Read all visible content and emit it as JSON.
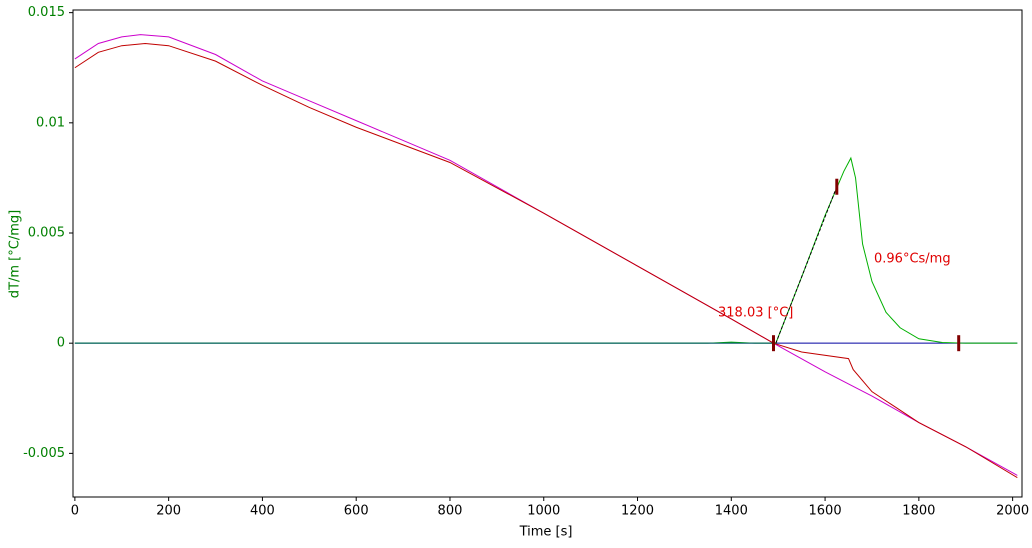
{
  "chart_data": {
    "type": "line",
    "xlabel": "Time [s]",
    "ylabel": "dT/m  [°C/mg]",
    "xlim": [
      -4,
      2020
    ],
    "ylim": [
      -0.00698,
      0.01512
    ],
    "xticks": [
      0,
      200,
      400,
      600,
      800,
      1000,
      1200,
      1400,
      1600,
      1800,
      2000
    ],
    "yticks": [
      -0.005,
      0,
      0.005,
      0.01,
      0.015
    ],
    "series": [
      {
        "color": "#0000a0",
        "x": [
          0,
          2010
        ],
        "values": [
          0,
          0
        ]
      },
      {
        "color": "#cc00cc",
        "x": [
          0,
          50,
          100,
          140,
          200,
          300,
          400,
          500,
          600,
          700,
          800,
          1000,
          1200,
          1400,
          1490,
          1600,
          1700,
          1800,
          1900,
          2010
        ],
        "values": [
          0.0129,
          0.0136,
          0.0139,
          0.014,
          0.0139,
          0.0131,
          0.0119,
          0.011,
          0.0101,
          0.0092,
          0.0083,
          0.0059,
          0.0035,
          0.0011,
          0,
          -0.0013,
          -0.0024,
          -0.0036,
          -0.0047,
          -0.006
        ]
      },
      {
        "color": "#c00000",
        "x": [
          0,
          50,
          100,
          150,
          200,
          300,
          400,
          500,
          600,
          700,
          800,
          1000,
          1200,
          1400,
          1490,
          1550,
          1650,
          1660,
          1700,
          1750,
          1800,
          1900,
          2010
        ],
        "values": [
          0.0125,
          0.0132,
          0.0135,
          0.0136,
          0.0135,
          0.0128,
          0.0117,
          0.0107,
          0.0098,
          0.009,
          0.0082,
          0.0059,
          0.0035,
          0.0011,
          0,
          -0.0004,
          -0.0007,
          -0.0012,
          -0.0022,
          -0.0029,
          -0.0036,
          -0.0047,
          -0.0061
        ]
      },
      {
        "color": "#00b000",
        "x": [
          0,
          1350,
          1400,
          1450,
          1495,
          1550,
          1600,
          1640,
          1655,
          1665,
          1680,
          1700,
          1730,
          1760,
          1800,
          1850,
          1900,
          2010
        ],
        "values": [
          0,
          0,
          5e-05,
          0,
          0,
          0.003,
          0.0058,
          0.0078,
          0.0084,
          0.0075,
          0.0045,
          0.0028,
          0.0014,
          0.0007,
          0.0002,
          3e-05,
          0,
          0
        ]
      },
      {
        "color": "#006060",
        "x": [
          0,
          1490
        ],
        "values": [
          0,
          0
        ]
      },
      {
        "color": "#000000",
        "dashed": true,
        "x": [
          1495,
          1625
        ],
        "values": [
          0,
          0.0071
        ]
      }
    ],
    "markers": {
      "color": "#800000",
      "x": [
        1490,
        1625,
        1885
      ],
      "values": [
        0,
        0.0071,
        0
      ]
    },
    "annotations": [
      {
        "text": "318.03 [°C]",
        "color": "#e00000"
      },
      {
        "text": "0.96°Cs/mg",
        "color": "#e00000"
      }
    ]
  }
}
